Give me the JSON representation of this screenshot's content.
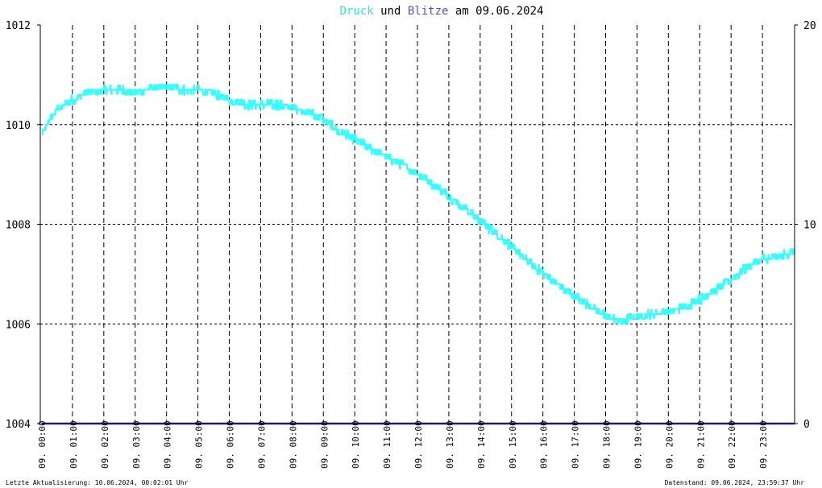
{
  "title": {
    "part1": "Druck",
    "part2": " und ",
    "part3": "Blitze",
    "part4": " am 09.06.2024",
    "color1": "#33e0e0",
    "color3": "#5555cc",
    "color_text": "#000000"
  },
  "footer": {
    "left": "Letzte Aktualisierung: 10.06.2024, 00:02:01 Uhr",
    "right": "Datenstand: 09.06.2024, 23:59:37 Uhr"
  },
  "chart_data": {
    "type": "line",
    "title": "Druck und Blitze am 09.06.2024",
    "grid": true,
    "y_left": {
      "range": [
        1004,
        1012
      ],
      "ticks": [
        "1004",
        "1006",
        "1008",
        "1010",
        "1012"
      ]
    },
    "y_right": {
      "range": [
        0,
        20
      ],
      "ticks": [
        "0",
        "10",
        "20"
      ]
    },
    "x": {
      "range_hours": [
        0,
        24
      ],
      "ticks": [
        "09. 00:00",
        "09. 01:00",
        "09. 02:00",
        "09. 03:00",
        "09. 04:00",
        "09. 05:00",
        "09. 06:00",
        "09. 07:00",
        "09. 08:00",
        "09. 09:00",
        "09. 10:00",
        "09. 11:00",
        "09. 12:00",
        "09. 13:00",
        "09. 14:00",
        "09. 15:00",
        "09. 16:00",
        "09. 17:00",
        "09. 18:00",
        "09. 19:00",
        "09. 20:00",
        "09. 21:00",
        "09. 22:00",
        "09. 23:00"
      ]
    },
    "series": [
      {
        "name": "Druck",
        "color": "#33ffff",
        "axis": "left",
        "hours": [
          0,
          0.25,
          0.5,
          0.75,
          1,
          1.5,
          2,
          2.5,
          3,
          3.5,
          4,
          4.5,
          5,
          5.5,
          6,
          6.5,
          7,
          7.5,
          8,
          8.5,
          9,
          9.5,
          10,
          10.5,
          11,
          11.5,
          12,
          12.5,
          13,
          13.5,
          14,
          14.5,
          15,
          15.5,
          16,
          16.5,
          17,
          17.5,
          18,
          18.5,
          19,
          19.5,
          20,
          20.5,
          21,
          21.5,
          22,
          22.5,
          23,
          23.5,
          24
        ],
        "values": [
          1009.8,
          1010.1,
          1010.3,
          1010.4,
          1010.5,
          1010.65,
          1010.7,
          1010.7,
          1010.65,
          1010.75,
          1010.75,
          1010.7,
          1010.7,
          1010.6,
          1010.5,
          1010.4,
          1010.4,
          1010.4,
          1010.35,
          1010.25,
          1010.1,
          1009.85,
          1009.7,
          1009.5,
          1009.35,
          1009.2,
          1009.0,
          1008.8,
          1008.55,
          1008.3,
          1008.05,
          1007.8,
          1007.55,
          1007.25,
          1007.0,
          1006.75,
          1006.55,
          1006.35,
          1006.15,
          1006.05,
          1006.15,
          1006.2,
          1006.25,
          1006.35,
          1006.5,
          1006.7,
          1006.9,
          1007.15,
          1007.3,
          1007.35,
          1007.45
        ]
      },
      {
        "name": "Blitze",
        "color": "#1a1a7a",
        "axis": "right",
        "hours": [
          0,
          24
        ],
        "values": [
          0,
          0
        ]
      }
    ]
  }
}
